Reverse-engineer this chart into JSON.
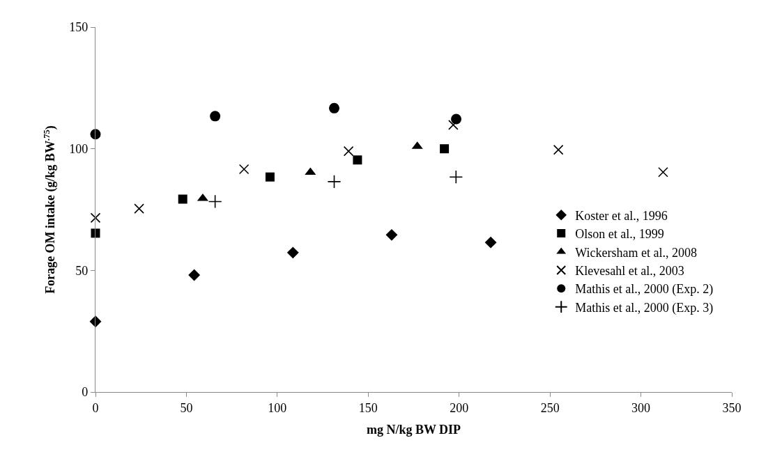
{
  "chart_data": {
    "type": "scatter",
    "xlabel": "mg N/kg BW DIP",
    "ylabel": "Forage OM intake (g/kg BW$^{.75}$)",
    "xlim": [
      0,
      350
    ],
    "xticks": [
      0,
      50,
      100,
      150,
      200,
      250,
      300,
      350
    ],
    "ylim": [
      0,
      150
    ],
    "yticks": [
      0,
      50,
      100,
      150
    ],
    "legend": "right",
    "series": [
      {
        "name": "Koster et al., 1996",
        "color": "#000000",
        "marker": "diamond",
        "x": [
          0,
          54.3,
          108.6,
          162.9,
          217.4
        ],
        "values": [
          29.0,
          48.1,
          57.3,
          64.6,
          61.5
        ]
      },
      {
        "name": "Olson et al., 1999",
        "color": "#000000",
        "marker": "square",
        "x": [
          0,
          48.0,
          96.0,
          144.1,
          191.9
        ],
        "values": [
          65.3,
          79.3,
          88.4,
          95.4,
          100.0
        ]
      },
      {
        "name": "Wickersham et al., 2008",
        "color": "#000000",
        "marker": "triangle",
        "x": [
          59.0,
          118.2,
          177.0
        ],
        "values": [
          79.6,
          90.3,
          101.0
        ]
      },
      {
        "name": "Klevesahl et al., 2003",
        "color": "#000000",
        "marker": "cross",
        "x": [
          0,
          24.0,
          81.7,
          139.2,
          196.8,
          254.6,
          312.2
        ],
        "values": [
          71.6,
          75.4,
          91.6,
          99.0,
          109.8,
          99.6,
          90.4
        ]
      },
      {
        "name": "Mathis et al., 2000 (Exp. 2)",
        "color": "#000000",
        "marker": "circle",
        "x": [
          0,
          65.8,
          131.3,
          198.4
        ],
        "values": [
          106.0,
          113.4,
          116.7,
          112.2
        ]
      },
      {
        "name": "Mathis et al., 2000 (Exp. 3)",
        "color": "#000000",
        "marker": "plus",
        "x": [
          65.8,
          131.3,
          198.3
        ],
        "values": [
          78.3,
          86.5,
          88.4
        ]
      }
    ]
  }
}
